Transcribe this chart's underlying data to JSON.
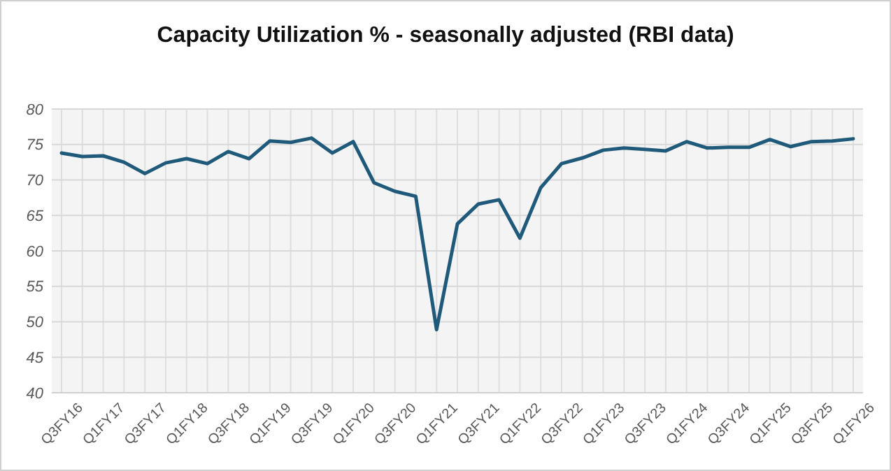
{
  "chart_data": {
    "type": "line",
    "title": "Capacity Utilization % - seasonally adjusted (RBI data)",
    "categories": [
      "Q3FY16",
      null,
      "Q1FY17",
      null,
      "Q3FY17",
      null,
      "Q1FY18",
      null,
      "Q3FY18",
      null,
      "Q1FY19",
      null,
      "Q3FY19",
      null,
      "Q1FY20",
      null,
      "Q3FY20",
      null,
      "Q1FY21",
      null,
      "Q3FY21",
      null,
      "Q1FY22",
      null,
      "Q3FY22",
      null,
      "Q1FY23",
      null,
      "Q3FY23",
      null,
      "Q1FY24",
      null,
      "Q3FY24",
      null,
      "Q1FY25",
      null,
      "Q3FY25",
      null,
      "Q1FY26"
    ],
    "series": [
      {
        "color": "#1f5a7a",
        "values": [
          73.8,
          73.3,
          73.4,
          72.5,
          70.9,
          72.4,
          73.0,
          72.3,
          74.0,
          73.0,
          75.5,
          75.3,
          75.9,
          73.8,
          75.4,
          69.6,
          68.4,
          67.7,
          48.9,
          63.8,
          66.6,
          67.2,
          61.8,
          68.9,
          72.3,
          73.1,
          74.2,
          74.5,
          74.3,
          74.1,
          75.4,
          74.5,
          74.6,
          74.6,
          75.7,
          74.7,
          75.4,
          75.5,
          75.8
        ]
      }
    ],
    "ylim": [
      40,
      80
    ],
    "yticks": [
      40,
      45,
      50,
      55,
      60,
      65,
      70,
      75,
      80
    ],
    "grid": true,
    "marker": "none",
    "line_style": "solid"
  }
}
